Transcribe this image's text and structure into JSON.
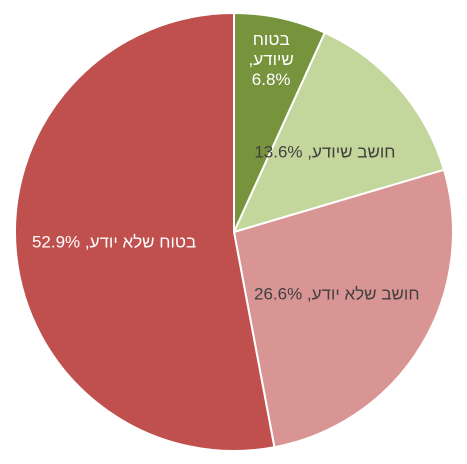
{
  "chart_data": {
    "type": "pie",
    "values": [
      6.8,
      13.6,
      26.6,
      52.9
    ],
    "value_labels": [
      "בטוח שיודע, 6.8%",
      "חושב שיודע, 13.6%",
      "חושב שלא יודע, 26.6%",
      "בטוח שלא יודע, 52.9%"
    ],
    "colors": [
      "#77933c",
      "#c3d69b",
      "#d99594",
      "#c0504d"
    ],
    "label_colors": [
      "#ffffff",
      "#404040",
      "#404040",
      "#ffffff"
    ]
  }
}
